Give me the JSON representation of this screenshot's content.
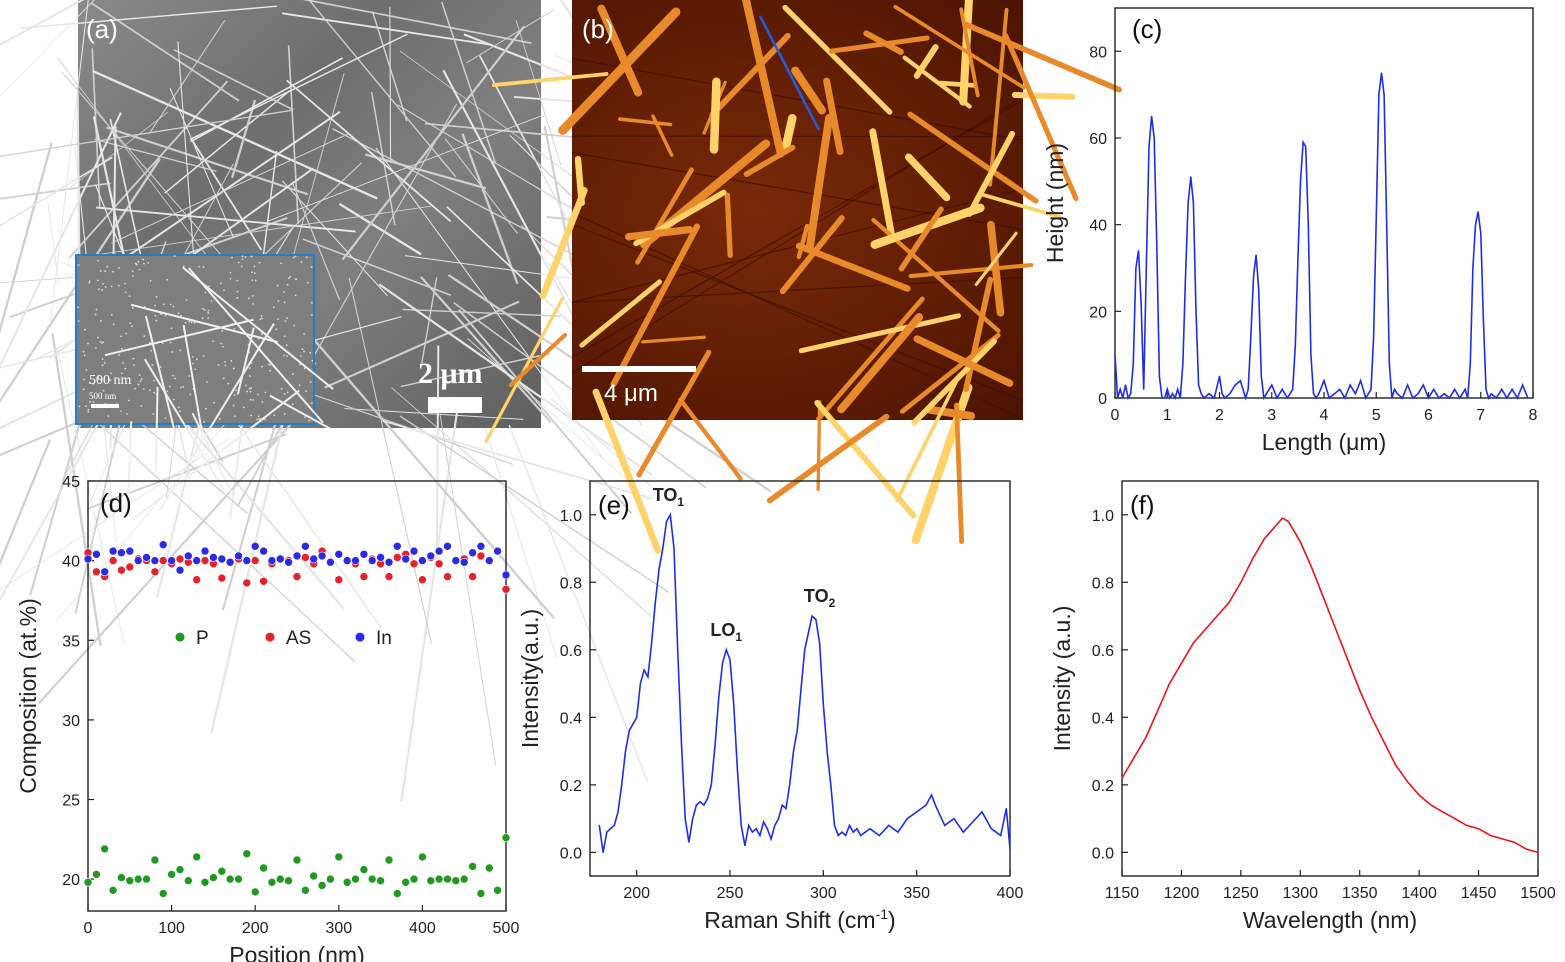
{
  "panel_a": {
    "label": "(a)",
    "scalebar_main": "2 μm",
    "inset_scalebar": "500 nm",
    "inset_scalebar_small": "500 nm"
  },
  "panel_b": {
    "label": "(b)",
    "scalebar": "4 μm"
  },
  "colors": {
    "line_blue": "#1f2ee6",
    "line_red": "#e8141e",
    "marker_green": "#1f9a1f",
    "marker_red": "#e8202a",
    "marker_blue": "#2a2ae8",
    "inset_border": "#1e7fd0",
    "afm_highlight": "#ffd36a"
  },
  "chart_data": [
    {
      "id": "c",
      "label": "(c)",
      "type": "line",
      "xlabel": "Length (μm)",
      "ylabel": "Height (nm)",
      "xlim": [
        0,
        8
      ],
      "ylim": [
        0,
        90
      ],
      "xticks": [
        0,
        1,
        2,
        3,
        4,
        5,
        6,
        7,
        8
      ],
      "yticks": [
        0,
        20,
        40,
        60,
        80
      ],
      "series": [
        {
          "x": [
            0,
            0.05,
            0.1,
            0.15,
            0.2,
            0.25,
            0.3,
            0.35,
            0.4,
            0.45,
            0.5,
            0.55,
            0.6,
            0.65,
            0.7,
            0.75,
            0.8,
            0.85,
            0.9,
            0.95,
            1.0,
            1.05,
            1.1,
            1.15,
            1.2,
            1.25,
            1.3,
            1.35,
            1.4,
            1.45,
            1.5,
            1.55,
            1.6,
            1.65,
            1.7,
            1.8,
            1.9,
            2.0,
            2.05,
            2.1,
            2.2,
            2.3,
            2.4,
            2.5,
            2.55,
            2.6,
            2.65,
            2.7,
            2.75,
            2.8,
            2.85,
            2.9,
            3.0,
            3.1,
            3.2,
            3.3,
            3.4,
            3.45,
            3.5,
            3.55,
            3.6,
            3.65,
            3.7,
            3.75,
            3.8,
            3.85,
            3.9,
            4.0,
            4.1,
            4.2,
            4.3,
            4.4,
            4.5,
            4.6,
            4.7,
            4.8,
            4.9,
            4.95,
            5.0,
            5.05,
            5.1,
            5.15,
            5.2,
            5.25,
            5.3,
            5.35,
            5.4,
            5.5,
            5.6,
            5.7,
            5.8,
            5.9,
            6.0,
            6.1,
            6.2,
            6.3,
            6.4,
            6.5,
            6.6,
            6.7,
            6.75,
            6.8,
            6.85,
            6.9,
            6.95,
            7.0,
            7.05,
            7.1,
            7.15,
            7.2,
            7.3,
            7.4,
            7.5,
            7.6,
            7.7,
            7.8,
            7.9
          ],
          "y": [
            10,
            0,
            2,
            0,
            3,
            0,
            1,
            8,
            30,
            34,
            22,
            2,
            30,
            58,
            65,
            60,
            35,
            5,
            0,
            0,
            2,
            0,
            1,
            0,
            2,
            0,
            8,
            28,
            45,
            51,
            45,
            20,
            3,
            1,
            0,
            1,
            0,
            5,
            1,
            0,
            1,
            3,
            4,
            0,
            2,
            14,
            28,
            33,
            25,
            5,
            0,
            1,
            3,
            0,
            2,
            0,
            2,
            12,
            32,
            50,
            59,
            58,
            40,
            10,
            1,
            0,
            1,
            4,
            0,
            1,
            2,
            0,
            3,
            1,
            4,
            0,
            2,
            14,
            42,
            70,
            75,
            70,
            40,
            8,
            0,
            2,
            1,
            0,
            3,
            0,
            1,
            3,
            0,
            2,
            0,
            1,
            0,
            2,
            0,
            2,
            0,
            8,
            30,
            40,
            43,
            38,
            18,
            2,
            0,
            1,
            0,
            2,
            0,
            2,
            0,
            3,
            0
          ]
        }
      ]
    },
    {
      "id": "d",
      "label": "(d)",
      "type": "scatter",
      "xlabel": "Position (nm)",
      "ylabel": "Composition (at.%)",
      "xlim": [
        0,
        500
      ],
      "ylim": [
        18,
        45
      ],
      "xticks": [
        0,
        100,
        200,
        300,
        400,
        500
      ],
      "yticks": [
        20,
        25,
        30,
        35,
        40,
        45
      ],
      "legend": "center",
      "series": [
        {
          "name": "P",
          "x": [
            0,
            10,
            20,
            30,
            40,
            50,
            60,
            70,
            80,
            90,
            100,
            110,
            120,
            130,
            140,
            150,
            160,
            170,
            180,
            190,
            200,
            210,
            220,
            230,
            240,
            250,
            260,
            270,
            280,
            290,
            300,
            310,
            320,
            330,
            340,
            350,
            360,
            370,
            380,
            390,
            400,
            410,
            420,
            430,
            440,
            450,
            460,
            470,
            480,
            490,
            500
          ],
          "y": [
            19.8,
            20.3,
            21.9,
            19.3,
            20.1,
            19.9,
            20.0,
            20.0,
            21.2,
            19.1,
            20.3,
            20.6,
            19.9,
            21.4,
            19.8,
            20.1,
            20.5,
            20.0,
            20.0,
            21.6,
            19.2,
            20.7,
            19.8,
            20.0,
            19.9,
            21.2,
            19.3,
            20.2,
            19.6,
            20.0,
            21.4,
            19.8,
            20.0,
            20.6,
            20.0,
            19.9,
            21.2,
            19.1,
            19.8,
            20.0,
            21.4,
            19.9,
            20.0,
            20.0,
            19.9,
            20.0,
            20.8,
            19.1,
            20.7,
            19.3,
            22.6
          ]
        },
        {
          "name": "AS",
          "x": [
            0,
            10,
            20,
            30,
            40,
            50,
            60,
            70,
            80,
            90,
            100,
            110,
            120,
            130,
            140,
            150,
            160,
            170,
            180,
            190,
            200,
            210,
            220,
            230,
            240,
            250,
            260,
            270,
            280,
            290,
            300,
            310,
            320,
            330,
            340,
            350,
            360,
            370,
            380,
            390,
            400,
            410,
            420,
            430,
            440,
            450,
            460,
            470,
            480,
            490,
            500
          ],
          "y": [
            40.5,
            39.3,
            39.0,
            40.0,
            39.4,
            39.6,
            40.1,
            40.0,
            39.3,
            40.0,
            39.8,
            40.1,
            39.9,
            38.8,
            40.0,
            39.8,
            38.9,
            39.9,
            40.1,
            38.6,
            40.0,
            38.7,
            39.8,
            40.1,
            40.0,
            39.0,
            40.2,
            39.8,
            40.6,
            39.9,
            38.8,
            40.0,
            39.8,
            39.0,
            40.1,
            39.8,
            39.0,
            40.2,
            40.4,
            39.8,
            38.8,
            40.2,
            39.8,
            39.0,
            40.0,
            40.1,
            39.0,
            40.3,
            40.0,
            40.6,
            38.2
          ]
        },
        {
          "name": "In",
          "x": [
            0,
            10,
            20,
            30,
            40,
            50,
            60,
            70,
            80,
            90,
            100,
            110,
            120,
            130,
            140,
            150,
            160,
            170,
            180,
            190,
            200,
            210,
            220,
            230,
            240,
            250,
            260,
            270,
            280,
            290,
            300,
            310,
            320,
            330,
            340,
            350,
            360,
            370,
            380,
            390,
            400,
            410,
            420,
            430,
            440,
            450,
            460,
            470,
            480,
            490,
            500
          ],
          "y": [
            40.1,
            40.4,
            39.3,
            40.6,
            40.5,
            40.6,
            40.0,
            40.2,
            40.0,
            41.0,
            40.0,
            39.4,
            40.3,
            40.0,
            40.6,
            40.2,
            40.1,
            39.9,
            40.3,
            40.0,
            40.9,
            40.6,
            40.0,
            40.1,
            39.9,
            40.3,
            40.9,
            40.1,
            40.3,
            39.9,
            40.4,
            40.0,
            40.0,
            40.4,
            40.0,
            40.2,
            39.9,
            40.9,
            40.1,
            40.6,
            40.0,
            40.3,
            40.6,
            40.9,
            40.0,
            39.9,
            40.5,
            40.9,
            40.0,
            40.6,
            39.1
          ]
        }
      ]
    },
    {
      "id": "e",
      "label": "(e)",
      "type": "line",
      "xlabel": "Raman Shift (cm",
      "xlabel_sup": "-1",
      "xlabel_end": ")",
      "ylabel": "Intensity(a.u.)",
      "xlim": [
        175,
        400
      ],
      "ylim": [
        -0.07,
        1.1
      ],
      "xticks": [
        200,
        250,
        300,
        350,
        400
      ],
      "yticks": [
        0.0,
        0.2,
        0.4,
        0.6,
        0.8,
        1.0
      ],
      "annotations": [
        {
          "text": "TO",
          "sub": "1",
          "x": 217,
          "y": 1.0
        },
        {
          "text": "LO",
          "sub": "1",
          "x": 248,
          "y": 0.6
        },
        {
          "text": "TO",
          "sub": "2",
          "x": 298,
          "y": 0.7
        }
      ],
      "series": [
        {
          "x": [
            180,
            182,
            184,
            186,
            188,
            190,
            192,
            194,
            196,
            198,
            200,
            202,
            204,
            206,
            208,
            210,
            212,
            214,
            216,
            218,
            220,
            222,
            224,
            226,
            228,
            230,
            232,
            234,
            236,
            238,
            240,
            242,
            244,
            246,
            248,
            250,
            252,
            254,
            256,
            258,
            260,
            262,
            264,
            266,
            268,
            270,
            272,
            274,
            276,
            278,
            280,
            282,
            284,
            286,
            288,
            290,
            292,
            294,
            296,
            298,
            300,
            302,
            304,
            306,
            308,
            310,
            312,
            314,
            316,
            318,
            320,
            325,
            330,
            335,
            340,
            345,
            350,
            355,
            358,
            360,
            365,
            370,
            375,
            380,
            385,
            390,
            395,
            398,
            400
          ],
          "y": [
            0.08,
            0.0,
            0.06,
            0.07,
            0.08,
            0.12,
            0.2,
            0.3,
            0.36,
            0.38,
            0.4,
            0.5,
            0.54,
            0.52,
            0.62,
            0.74,
            0.84,
            0.9,
            0.98,
            1.0,
            0.9,
            0.6,
            0.32,
            0.1,
            0.03,
            0.1,
            0.14,
            0.15,
            0.14,
            0.16,
            0.2,
            0.32,
            0.46,
            0.56,
            0.6,
            0.57,
            0.44,
            0.24,
            0.08,
            0.02,
            0.08,
            0.06,
            0.07,
            0.05,
            0.09,
            0.07,
            0.04,
            0.08,
            0.1,
            0.14,
            0.13,
            0.2,
            0.3,
            0.36,
            0.48,
            0.6,
            0.65,
            0.7,
            0.69,
            0.62,
            0.44,
            0.3,
            0.2,
            0.08,
            0.05,
            0.06,
            0.05,
            0.08,
            0.06,
            0.07,
            0.05,
            0.07,
            0.05,
            0.08,
            0.06,
            0.1,
            0.12,
            0.14,
            0.17,
            0.14,
            0.08,
            0.1,
            0.06,
            0.09,
            0.12,
            0.07,
            0.05,
            0.13,
            0.01
          ]
        }
      ]
    },
    {
      "id": "f",
      "label": "(f)",
      "type": "line",
      "xlabel": "Wavelength (nm)",
      "ylabel": "Intensity (a.u.)",
      "xlim": [
        1150,
        1500
      ],
      "ylim": [
        -0.07,
        1.1
      ],
      "xticks": [
        1150,
        1200,
        1250,
        1300,
        1350,
        1400,
        1450,
        1500
      ],
      "yticks": [
        0.0,
        0.2,
        0.4,
        0.6,
        0.8,
        1.0
      ],
      "series": [
        {
          "x": [
            1150,
            1160,
            1170,
            1180,
            1190,
            1200,
            1210,
            1220,
            1230,
            1240,
            1250,
            1260,
            1270,
            1280,
            1285,
            1290,
            1300,
            1310,
            1320,
            1330,
            1340,
            1350,
            1360,
            1370,
            1380,
            1390,
            1400,
            1410,
            1420,
            1430,
            1440,
            1450,
            1460,
            1470,
            1480,
            1490,
            1500
          ],
          "y": [
            0.22,
            0.28,
            0.34,
            0.42,
            0.5,
            0.56,
            0.62,
            0.66,
            0.7,
            0.74,
            0.8,
            0.87,
            0.93,
            0.97,
            0.99,
            0.98,
            0.92,
            0.84,
            0.75,
            0.66,
            0.57,
            0.48,
            0.4,
            0.33,
            0.26,
            0.21,
            0.17,
            0.14,
            0.12,
            0.1,
            0.08,
            0.07,
            0.05,
            0.04,
            0.03,
            0.01,
            0.0
          ]
        }
      ]
    }
  ]
}
